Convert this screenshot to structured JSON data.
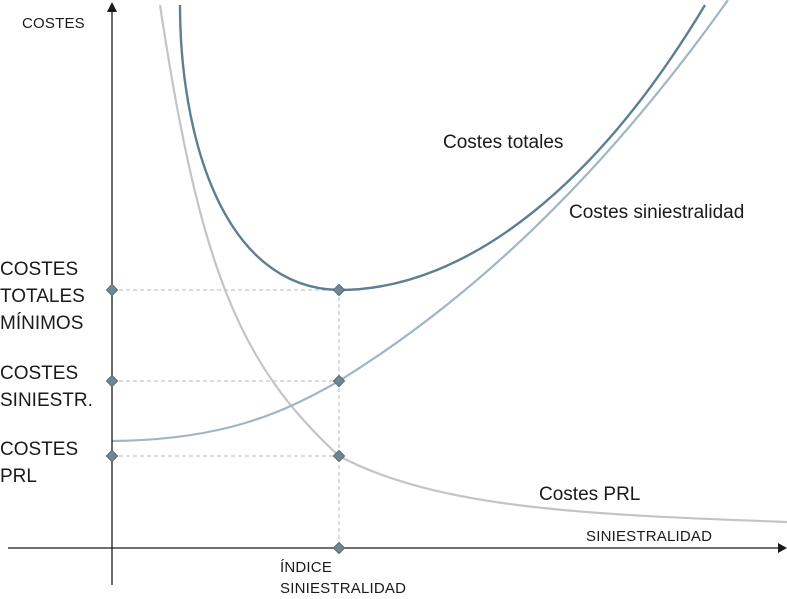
{
  "diagram": {
    "y_axis_label": "COSTES",
    "x_axis_label": "SINIESTRALIDAD",
    "x_marker_label": [
      "ÍNDICE",
      "SINIESTRALIDAD"
    ],
    "curves": {
      "total": "Costes totales",
      "siniestralidad": "Costes siniestralidad",
      "prl": "Costes PRL"
    },
    "levels": {
      "total_min": [
        "COSTES",
        "TOTALES",
        "MÍNIMOS"
      ],
      "siniestr": [
        "COSTES",
        "SINIESTR."
      ],
      "prl": [
        "COSTES",
        "PRL"
      ]
    },
    "colors": {
      "total": "#5e7f92",
      "siniestralidad": "#9fb6c3",
      "prl": "#c4c4c4",
      "axis": "#1a1a1a",
      "marker": "#6f8794",
      "guide": "#b8b8b8"
    }
  }
}
